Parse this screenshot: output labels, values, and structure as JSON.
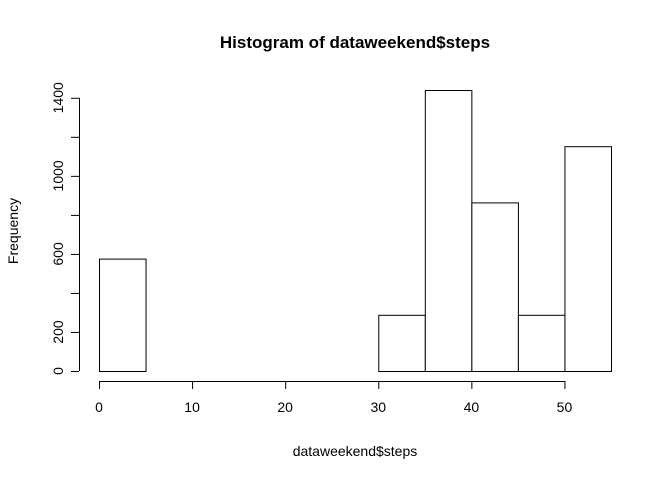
{
  "chart_data": {
    "type": "bar",
    "title": "Histogram of dataweekend$steps",
    "xlabel": "dataweekend$steps",
    "ylabel": "Frequency",
    "xlim": [
      0,
      55
    ],
    "ylim": [
      0,
      1440
    ],
    "bins": [
      {
        "start": 0,
        "end": 5,
        "value": 576
      },
      {
        "start": 5,
        "end": 10,
        "value": 0
      },
      {
        "start": 10,
        "end": 15,
        "value": 0
      },
      {
        "start": 15,
        "end": 20,
        "value": 0
      },
      {
        "start": 20,
        "end": 25,
        "value": 0
      },
      {
        "start": 25,
        "end": 30,
        "value": 0
      },
      {
        "start": 30,
        "end": 35,
        "value": 288
      },
      {
        "start": 35,
        "end": 40,
        "value": 1440
      },
      {
        "start": 40,
        "end": 45,
        "value": 864
      },
      {
        "start": 45,
        "end": 50,
        "value": 288
      },
      {
        "start": 50,
        "end": 55,
        "value": 1152
      }
    ],
    "x_ticks": [
      0,
      10,
      20,
      30,
      40,
      50
    ],
    "x_tick_labels": [
      "0",
      "10",
      "20",
      "30",
      "40",
      "50"
    ],
    "y_ticks": [
      0,
      200,
      400,
      600,
      800,
      1000,
      1200,
      1400
    ],
    "y_tick_labels": [
      "0",
      "200",
      "",
      "600",
      "",
      "1000",
      "",
      "1400"
    ],
    "grid": false,
    "colors": {
      "bar_fill": "#ffffff",
      "bar_stroke": "#000000"
    }
  }
}
